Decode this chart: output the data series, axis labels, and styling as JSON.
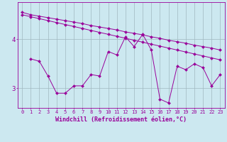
{
  "background_color": "#cce8f0",
  "line_color": "#990099",
  "grid_color": "#a0b8c0",
  "ylabel_ticks": [
    3,
    4
  ],
  "xlabel": "Windchill (Refroidissement éolien,°C)",
  "xlim": [
    -0.5,
    23.5
  ],
  "ylim": [
    2.6,
    4.75
  ],
  "series_straight1": {
    "x": [
      0,
      1,
      2,
      3,
      4,
      5,
      6,
      7,
      8,
      9,
      10,
      11,
      12,
      13,
      14,
      15,
      16,
      17,
      18,
      19,
      20,
      21,
      22,
      23
    ],
    "y": [
      4.55,
      4.5,
      4.47,
      4.44,
      4.41,
      4.38,
      4.35,
      4.32,
      4.28,
      4.25,
      4.22,
      4.19,
      4.15,
      4.12,
      4.09,
      4.05,
      4.02,
      3.98,
      3.95,
      3.92,
      3.88,
      3.85,
      3.82,
      3.78
    ]
  },
  "series_straight2": {
    "x": [
      0,
      1,
      2,
      3,
      4,
      5,
      6,
      7,
      8,
      9,
      10,
      11,
      12,
      13,
      14,
      15,
      16,
      17,
      18,
      19,
      20,
      21,
      22,
      23
    ],
    "y": [
      4.5,
      4.46,
      4.42,
      4.38,
      4.34,
      4.3,
      4.26,
      4.22,
      4.18,
      4.14,
      4.1,
      4.06,
      4.02,
      3.98,
      3.94,
      3.9,
      3.86,
      3.82,
      3.78,
      3.74,
      3.7,
      3.66,
      3.62,
      3.58
    ]
  },
  "series_jagged": {
    "x": [
      1,
      2,
      3,
      4,
      5,
      6,
      7,
      8,
      9,
      10,
      11,
      12,
      13,
      14,
      15,
      16,
      17,
      18,
      19,
      20,
      21,
      22,
      23
    ],
    "y": [
      3.6,
      3.55,
      3.25,
      2.9,
      2.9,
      3.05,
      3.05,
      3.28,
      3.25,
      3.75,
      3.68,
      4.05,
      3.85,
      4.1,
      3.78,
      2.78,
      2.7,
      3.45,
      3.38,
      3.5,
      3.42,
      3.05,
      3.28
    ]
  },
  "xtick_labels": [
    "0",
    "1",
    "2",
    "3",
    "4",
    "5",
    "6",
    "7",
    "8",
    "9",
    "10",
    "11",
    "12",
    "13",
    "14",
    "15",
    "16",
    "17",
    "18",
    "19",
    "20",
    "21",
    "22",
    "23"
  ],
  "tick_fontsize": 5.0,
  "xlabel_fontsize": 6.0,
  "ylabel_fontsize": 6.5,
  "marker_size": 2.2,
  "linewidth": 0.7
}
